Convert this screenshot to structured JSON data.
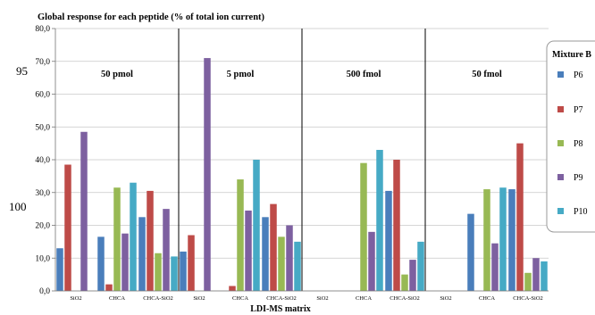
{
  "chart_data": {
    "type": "bar",
    "title": "Global response for each peptide (% of total ion current)",
    "xlabel": "LDI-MS matrix",
    "ylabel": "",
    "ylim": [
      0,
      80
    ],
    "yticks": [
      "0,0",
      "10,0",
      "20,0",
      "30,0",
      "40,0",
      "50,0",
      "60,0",
      "70,0",
      "80,0"
    ],
    "grid": true,
    "legend_position": "right",
    "legend_title": "Mixture B",
    "side_labels": [
      "95",
      "100"
    ],
    "colors": {
      "P6": "#4a7ebb",
      "P7": "#be4b48",
      "P8": "#98b954",
      "P9": "#7d60a0",
      "P10": "#46aac5"
    },
    "panels": [
      {
        "label": "50 pmol",
        "groups": [
          {
            "category": "SiO2",
            "values": {
              "P6": 13.0,
              "P7": 38.5,
              "P8": 0,
              "P9": 48.5,
              "P10": 0
            }
          },
          {
            "category": "CHCA",
            "values": {
              "P6": 16.5,
              "P7": 2.0,
              "P8": 31.5,
              "P9": 17.5,
              "P10": 33.0
            }
          },
          {
            "category": "CHCA-SiO2",
            "values": {
              "P6": 22.5,
              "P7": 30.5,
              "P8": 11.5,
              "P9": 25.0,
              "P10": 10.5
            }
          }
        ]
      },
      {
        "label": "5 pmol",
        "groups": [
          {
            "category": "SiO2",
            "values": {
              "P6": 12.0,
              "P7": 17.0,
              "P8": 0,
              "P9": 71.0,
              "P10": 0
            }
          },
          {
            "category": "CHCA",
            "values": {
              "P6": 0,
              "P7": 1.5,
              "P8": 34.0,
              "P9": 24.5,
              "P10": 40.0
            }
          },
          {
            "category": "CHCA-SiO2",
            "values": {
              "P6": 22.5,
              "P7": 26.5,
              "P8": 16.5,
              "P9": 20.0,
              "P10": 15.0
            }
          }
        ]
      },
      {
        "label": "500 fmol",
        "groups": [
          {
            "category": "SiO2",
            "values": {
              "P6": 0,
              "P7": 0,
              "P8": 0,
              "P9": 0,
              "P10": 0
            }
          },
          {
            "category": "CHCA",
            "values": {
              "P6": 0,
              "P7": 0,
              "P8": 39.0,
              "P9": 18.0,
              "P10": 43.0
            }
          },
          {
            "category": "CHCA-SiO2",
            "values": {
              "P6": 30.5,
              "P7": 40.0,
              "P8": 5.0,
              "P9": 9.5,
              "P10": 15.0
            }
          }
        ]
      },
      {
        "label": "50 fmol",
        "groups": [
          {
            "category": "SiO2",
            "values": {
              "P6": 0,
              "P7": 0,
              "P8": 0,
              "P9": 0,
              "P10": 0
            }
          },
          {
            "category": "CHCA",
            "values": {
              "P6": 23.5,
              "P7": 0,
              "P8": 31.0,
              "P9": 14.5,
              "P10": 31.5
            }
          },
          {
            "category": "CHCA-SiO2",
            "values": {
              "P6": 31.0,
              "P7": 45.0,
              "P8": 5.5,
              "P9": 10.0,
              "P10": 9.0
            }
          }
        ]
      }
    ],
    "series": [
      {
        "name": "P6"
      },
      {
        "name": "P7"
      },
      {
        "name": "P8"
      },
      {
        "name": "P9"
      },
      {
        "name": "P10"
      }
    ]
  }
}
